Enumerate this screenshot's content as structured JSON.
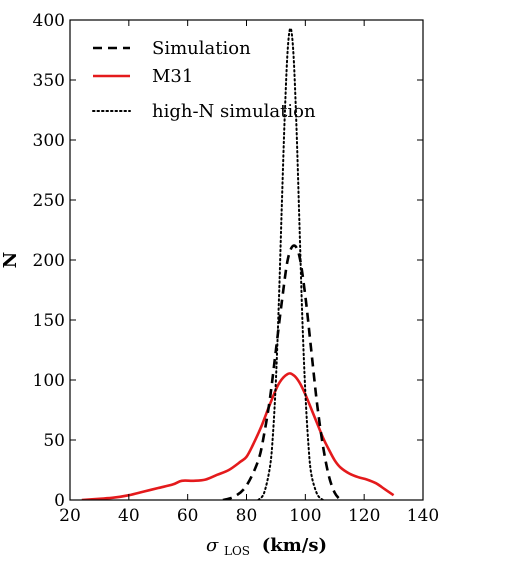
{
  "chart_data": {
    "type": "line",
    "xlabel_symbol": "σ",
    "xlabel_subscript": "LOS",
    "xlabel_units": "(km/s)",
    "ylabel": "N",
    "xlim": [
      20,
      140
    ],
    "ylim": [
      0,
      400
    ],
    "xticks": [
      20,
      40,
      60,
      80,
      100,
      120,
      140
    ],
    "yticks": [
      0,
      50,
      100,
      150,
      200,
      250,
      300,
      350,
      400
    ],
    "grid": false,
    "legend_position": "top-left",
    "series": [
      {
        "name": "Simulation",
        "style": "dashed",
        "color": "#000000",
        "x": [
          72,
          76,
          80,
          84,
          86,
          88,
          90,
          92,
          94,
          96,
          98,
          100,
          102,
          104,
          106,
          108,
          110,
          112
        ],
        "y": [
          0,
          3,
          12,
          33,
          55,
          85,
          125,
          165,
          200,
          212,
          203,
          170,
          125,
          80,
          45,
          20,
          6,
          0
        ]
      },
      {
        "name": "M31",
        "style": "solid",
        "color": "#e41a1c",
        "x": [
          24,
          30,
          35,
          40,
          45,
          50,
          55,
          58,
          62,
          66,
          70,
          74,
          78,
          80,
          82,
          85,
          88,
          91,
          94,
          96,
          98,
          100,
          103,
          106,
          108,
          110,
          112,
          115,
          118,
          121,
          124,
          127,
          130
        ],
        "y": [
          0,
          1,
          2,
          4,
          7,
          10,
          13,
          16,
          16,
          17,
          21,
          25,
          32,
          36,
          45,
          61,
          80,
          97,
          105,
          104,
          98,
          88,
          70,
          52,
          42,
          33,
          27,
          22,
          19,
          17,
          14,
          9,
          4
        ]
      },
      {
        "name": "high-N simulation",
        "style": "dotted",
        "color": "#000000",
        "x": [
          84,
          86,
          88,
          89,
          90,
          91,
          92,
          93,
          94,
          95,
          96,
          97,
          98,
          99,
          100,
          101,
          102,
          104,
          106
        ],
        "y": [
          0,
          6,
          28,
          55,
          100,
          165,
          245,
          320,
          375,
          393,
          370,
          310,
          230,
          150,
          90,
          48,
          22,
          5,
          0
        ]
      }
    ]
  }
}
